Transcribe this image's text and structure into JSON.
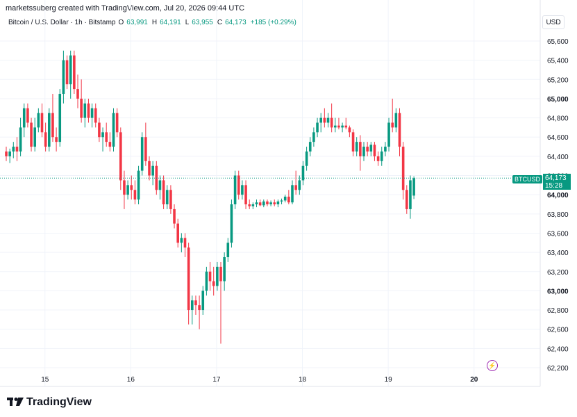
{
  "header": {
    "attribution": "marketssuberg created with TradingView.com, Jul 20, 2026 09:44 UTC"
  },
  "legend": {
    "symbol": "Bitcoin / U.S. Dollar · 1h · Bitstamp",
    "o_label": "O",
    "o_value": "63,991",
    "h_label": "H",
    "h_value": "64,191",
    "l_label": "L",
    "l_value": "63,955",
    "c_label": "C",
    "c_value": "64,173",
    "change": "+185 (+0.29%)"
  },
  "currency_label": "USD",
  "brand": {
    "name": "TradingView",
    "logo_icon": "tradingview-logo-icon"
  },
  "price_tag": {
    "ticker": "BTCUSD",
    "price": "64,173",
    "countdown": "15:28"
  },
  "colors": {
    "up": "#089981",
    "down": "#f23645",
    "grid": "#f0f3fa",
    "axis_text": "#131722"
  },
  "chart_data": {
    "type": "candlestick",
    "title": "Bitcoin / U.S. Dollar · 1h · Bitstamp",
    "y_axis": {
      "min": 62200,
      "max": 65600,
      "side": "right",
      "ticks": [
        65600,
        65400,
        65200,
        65000,
        64800,
        64600,
        64400,
        64200,
        64000,
        63800,
        63600,
        63400,
        63200,
        63000,
        62800,
        62600,
        62400,
        62200
      ],
      "tick_labels": [
        "65,600",
        "65,400",
        "65,200",
        "65,000",
        "64,800",
        "64,600",
        "64,400",
        "64,200",
        "64,000",
        "63,800",
        "63,600",
        "63,400",
        "63,200",
        "63,000",
        "62,800",
        "62,600",
        "62,400",
        "62,200"
      ],
      "bold_labels": [
        "65,000",
        "64,000",
        "63,000"
      ]
    },
    "x_axis": {
      "labels": [
        {
          "text": "15",
          "candle": 5
        },
        {
          "text": "16",
          "candle": 29
        },
        {
          "text": "17",
          "candle": 53
        },
        {
          "text": "18",
          "candle": 77
        },
        {
          "text": "19",
          "candle": 101
        },
        {
          "text": "20",
          "candle": 125,
          "bold": true
        }
      ]
    },
    "grid": true,
    "last_price": 64173,
    "candles": [
      [
        64450,
        64500,
        64350,
        64400
      ],
      [
        64400,
        64480,
        64330,
        64450
      ],
      [
        64450,
        64550,
        64380,
        64500
      ],
      [
        64500,
        64600,
        64350,
        64450
      ],
      [
        64450,
        64800,
        64400,
        64700
      ],
      [
        64700,
        64950,
        64600,
        64900
      ],
      [
        64900,
        64950,
        64700,
        64750
      ],
      [
        64750,
        64800,
        64450,
        64500
      ],
      [
        64500,
        64800,
        64450,
        64700
      ],
      [
        64700,
        64900,
        64650,
        64850
      ],
      [
        64850,
        64950,
        64600,
        64650
      ],
      [
        64650,
        64750,
        64450,
        64500
      ],
      [
        64500,
        64900,
        64450,
        64850
      ],
      [
        64850,
        65050,
        64550,
        64600
      ],
      [
        64600,
        64700,
        64450,
        64550
      ],
      [
        64550,
        65100,
        64500,
        65050
      ],
      [
        65050,
        65500,
        64950,
        65400
      ],
      [
        65400,
        65450,
        65100,
        65150
      ],
      [
        65150,
        65500,
        65000,
        65450
      ],
      [
        65450,
        65500,
        65050,
        65100
      ],
      [
        65100,
        65250,
        64900,
        65000
      ],
      [
        65000,
        65200,
        64750,
        64800
      ],
      [
        64800,
        65000,
        64700,
        64950
      ],
      [
        64950,
        65000,
        64750,
        64800
      ],
      [
        64800,
        64950,
        64700,
        64900
      ],
      [
        64900,
        64950,
        64700,
        64750
      ],
      [
        64750,
        64800,
        64550,
        64600
      ],
      [
        64600,
        64700,
        64450,
        64650
      ],
      [
        64650,
        64750,
        64500,
        64550
      ],
      [
        64550,
        64650,
        64450,
        64500
      ],
      [
        64500,
        64900,
        64450,
        64850
      ],
      [
        64850,
        64900,
        64600,
        64650
      ],
      [
        64650,
        64700,
        64050,
        64150
      ],
      [
        64150,
        64250,
        63850,
        64000
      ],
      [
        64000,
        64150,
        63950,
        64100
      ],
      [
        64100,
        64200,
        63950,
        64050
      ],
      [
        64050,
        64150,
        63900,
        63950
      ],
      [
        63950,
        64300,
        63900,
        64250
      ],
      [
        64250,
        64650,
        64200,
        64600
      ],
      [
        64600,
        64750,
        64300,
        64350
      ],
      [
        64350,
        64400,
        64150,
        64200
      ],
      [
        64200,
        64350,
        64100,
        64300
      ],
      [
        64300,
        64350,
        64000,
        64050
      ],
      [
        64050,
        64200,
        63950,
        64150
      ],
      [
        64150,
        64200,
        63850,
        63900
      ],
      [
        63900,
        64100,
        63850,
        64050
      ],
      [
        64050,
        64100,
        63800,
        63850
      ],
      [
        63850,
        63900,
        63650,
        63700
      ],
      [
        63700,
        63750,
        63450,
        63500
      ],
      [
        63500,
        63600,
        63400,
        63550
      ],
      [
        63550,
        63600,
        63350,
        63450
      ],
      [
        63450,
        63500,
        62650,
        62800
      ],
      [
        62800,
        62950,
        62650,
        62900
      ],
      [
        62900,
        62950,
        62750,
        62850
      ],
      [
        62850,
        62950,
        62600,
        62800
      ],
      [
        62800,
        63050,
        62750,
        63000
      ],
      [
        63000,
        63250,
        62950,
        63200
      ],
      [
        63200,
        63300,
        63000,
        63100
      ],
      [
        63100,
        63250,
        62950,
        63050
      ],
      [
        63050,
        63300,
        63000,
        63250
      ],
      [
        63250,
        63300,
        62450,
        63100
      ],
      [
        63100,
        63400,
        63000,
        63350
      ],
      [
        63350,
        63550,
        63300,
        63500
      ],
      [
        63500,
        63950,
        63450,
        63900
      ],
      [
        63900,
        64250,
        63850,
        64200
      ],
      [
        64200,
        64250,
        63950,
        64000
      ],
      [
        64000,
        64150,
        63950,
        64100
      ],
      [
        64100,
        64150,
        63850,
        63900
      ],
      [
        63900,
        63950,
        63850,
        63880
      ],
      [
        63880,
        63920,
        63850,
        63900
      ],
      [
        63900,
        63950,
        63870,
        63920
      ],
      [
        63920,
        63950,
        63880,
        63890
      ],
      [
        63890,
        63950,
        63870,
        63930
      ],
      [
        63930,
        63950,
        63880,
        63900
      ],
      [
        63900,
        63940,
        63880,
        63920
      ],
      [
        63920,
        63950,
        63880,
        63900
      ],
      [
        63900,
        63950,
        63870,
        63930
      ],
      [
        63930,
        63960,
        63900,
        63940
      ],
      [
        63940,
        64000,
        63920,
        63980
      ],
      [
        63980,
        64050,
        63900,
        63920
      ],
      [
        63920,
        64150,
        63900,
        64100
      ],
      [
        64100,
        64250,
        64000,
        64050
      ],
      [
        64050,
        64200,
        64000,
        64150
      ],
      [
        64150,
        64350,
        64100,
        64300
      ],
      [
        64300,
        64500,
        64250,
        64450
      ],
      [
        64450,
        64600,
        64400,
        64550
      ],
      [
        64550,
        64700,
        64500,
        64650
      ],
      [
        64650,
        64800,
        64600,
        64750
      ],
      [
        64750,
        64850,
        64650,
        64800
      ],
      [
        64800,
        64900,
        64700,
        64750
      ],
      [
        64750,
        64850,
        64700,
        64800
      ],
      [
        64800,
        64950,
        64650,
        64700
      ],
      [
        64700,
        64800,
        64650,
        64720
      ],
      [
        64720,
        64800,
        64680,
        64700
      ],
      [
        64700,
        64750,
        64650,
        64720
      ],
      [
        64720,
        64800,
        64680,
        64700
      ],
      [
        64700,
        64720,
        64600,
        64650
      ],
      [
        64650,
        64680,
        64400,
        64450
      ],
      [
        64450,
        64600,
        64400,
        64550
      ],
      [
        64550,
        64620,
        64250,
        64400
      ],
      [
        64400,
        64550,
        64350,
        64500
      ],
      [
        64500,
        64550,
        64400,
        64450
      ],
      [
        64450,
        64550,
        64400,
        64520
      ],
      [
        64520,
        64550,
        64350,
        64400
      ],
      [
        64400,
        64450,
        64300,
        64350
      ],
      [
        64350,
        64500,
        64300,
        64450
      ],
      [
        64450,
        64550,
        64400,
        64500
      ],
      [
        64500,
        64800,
        64450,
        64750
      ],
      [
        64750,
        65000,
        64650,
        64700
      ],
      [
        64700,
        64900,
        64650,
        64850
      ],
      [
        64850,
        64900,
        64400,
        64500
      ],
      [
        64500,
        64550,
        63950,
        64050
      ],
      [
        64050,
        64100,
        63800,
        63850
      ],
      [
        63850,
        64200,
        63750,
        64150
      ],
      [
        63991,
        64191,
        63955,
        64173
      ]
    ]
  }
}
